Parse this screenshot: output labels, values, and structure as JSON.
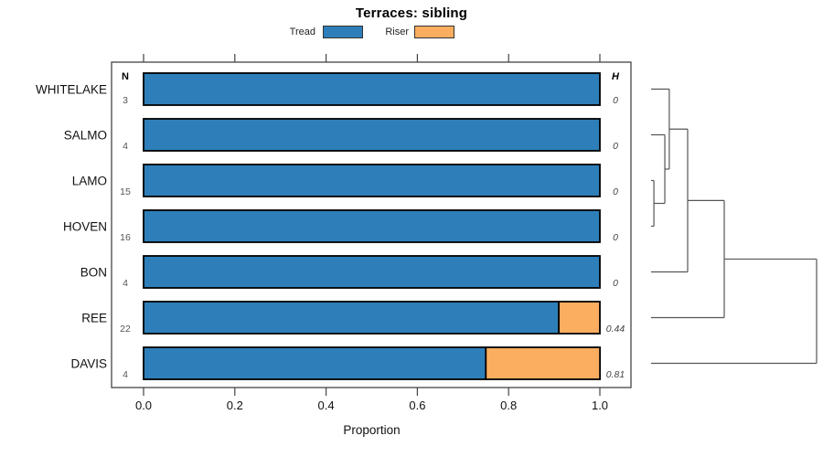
{
  "title": "Terraces: sibling",
  "legend": {
    "items": [
      {
        "label": "Tread",
        "color": "#2E7FB9"
      },
      {
        "label": "Riser",
        "color": "#FBAD60"
      }
    ]
  },
  "columns": {
    "n_header": "N",
    "h_header": "H"
  },
  "chart_data": {
    "type": "bar",
    "orientation": "horizontal",
    "stacked": true,
    "title": "Terraces: sibling",
    "xlabel": "Proportion",
    "xlim": [
      0.0,
      1.0
    ],
    "xticks": [
      "0.0",
      "0.2",
      "0.4",
      "0.6",
      "0.8",
      "1.0"
    ],
    "xtick_values": [
      0.0,
      0.2,
      0.4,
      0.6,
      0.8,
      1.0
    ],
    "grid": false,
    "legend_position": "top",
    "categories": [
      "WHITELAKE",
      "SALMO",
      "LAMO",
      "HOVEN",
      "BON",
      "REE",
      "DAVIS"
    ],
    "n_values": [
      "3",
      "4",
      "15",
      "16",
      "4",
      "22",
      "4"
    ],
    "h_values": [
      "0",
      "0",
      "0",
      "0",
      "0",
      "0.44",
      "0.81"
    ],
    "series": [
      {
        "name": "Tread",
        "color": "#2E7FB9",
        "values": [
          1.0,
          1.0,
          1.0,
          1.0,
          1.0,
          0.91,
          0.75
        ]
      },
      {
        "name": "Riser",
        "color": "#FBAD60",
        "values": [
          0.0,
          0.0,
          0.0,
          0.0,
          0.0,
          0.09,
          0.25
        ]
      }
    ],
    "bar_border_color": "#000000",
    "dendrogram": {
      "line_color": "#555555",
      "tree": {
        "h": 1.0,
        "children": [
          {
            "h": 0.442,
            "children": [
              {
                "h": 0.221,
                "children": [
                  {
                    "h": 0.11,
                    "children": [
                      {
                        "leaf": "WHITELAKE"
                      },
                      {
                        "h": 0.083,
                        "children": [
                          {
                            "leaf": "SALMO"
                          },
                          {
                            "h": 0.017,
                            "children": [
                              {
                                "leaf": "LAMO"
                              },
                              {
                                "leaf": "HOVEN"
                              }
                            ]
                          }
                        ]
                      }
                    ]
                  },
                  {
                    "leaf": "BON"
                  }
                ]
              },
              {
                "leaf": "REE"
              }
            ]
          },
          {
            "leaf": "DAVIS"
          }
        ]
      }
    }
  }
}
